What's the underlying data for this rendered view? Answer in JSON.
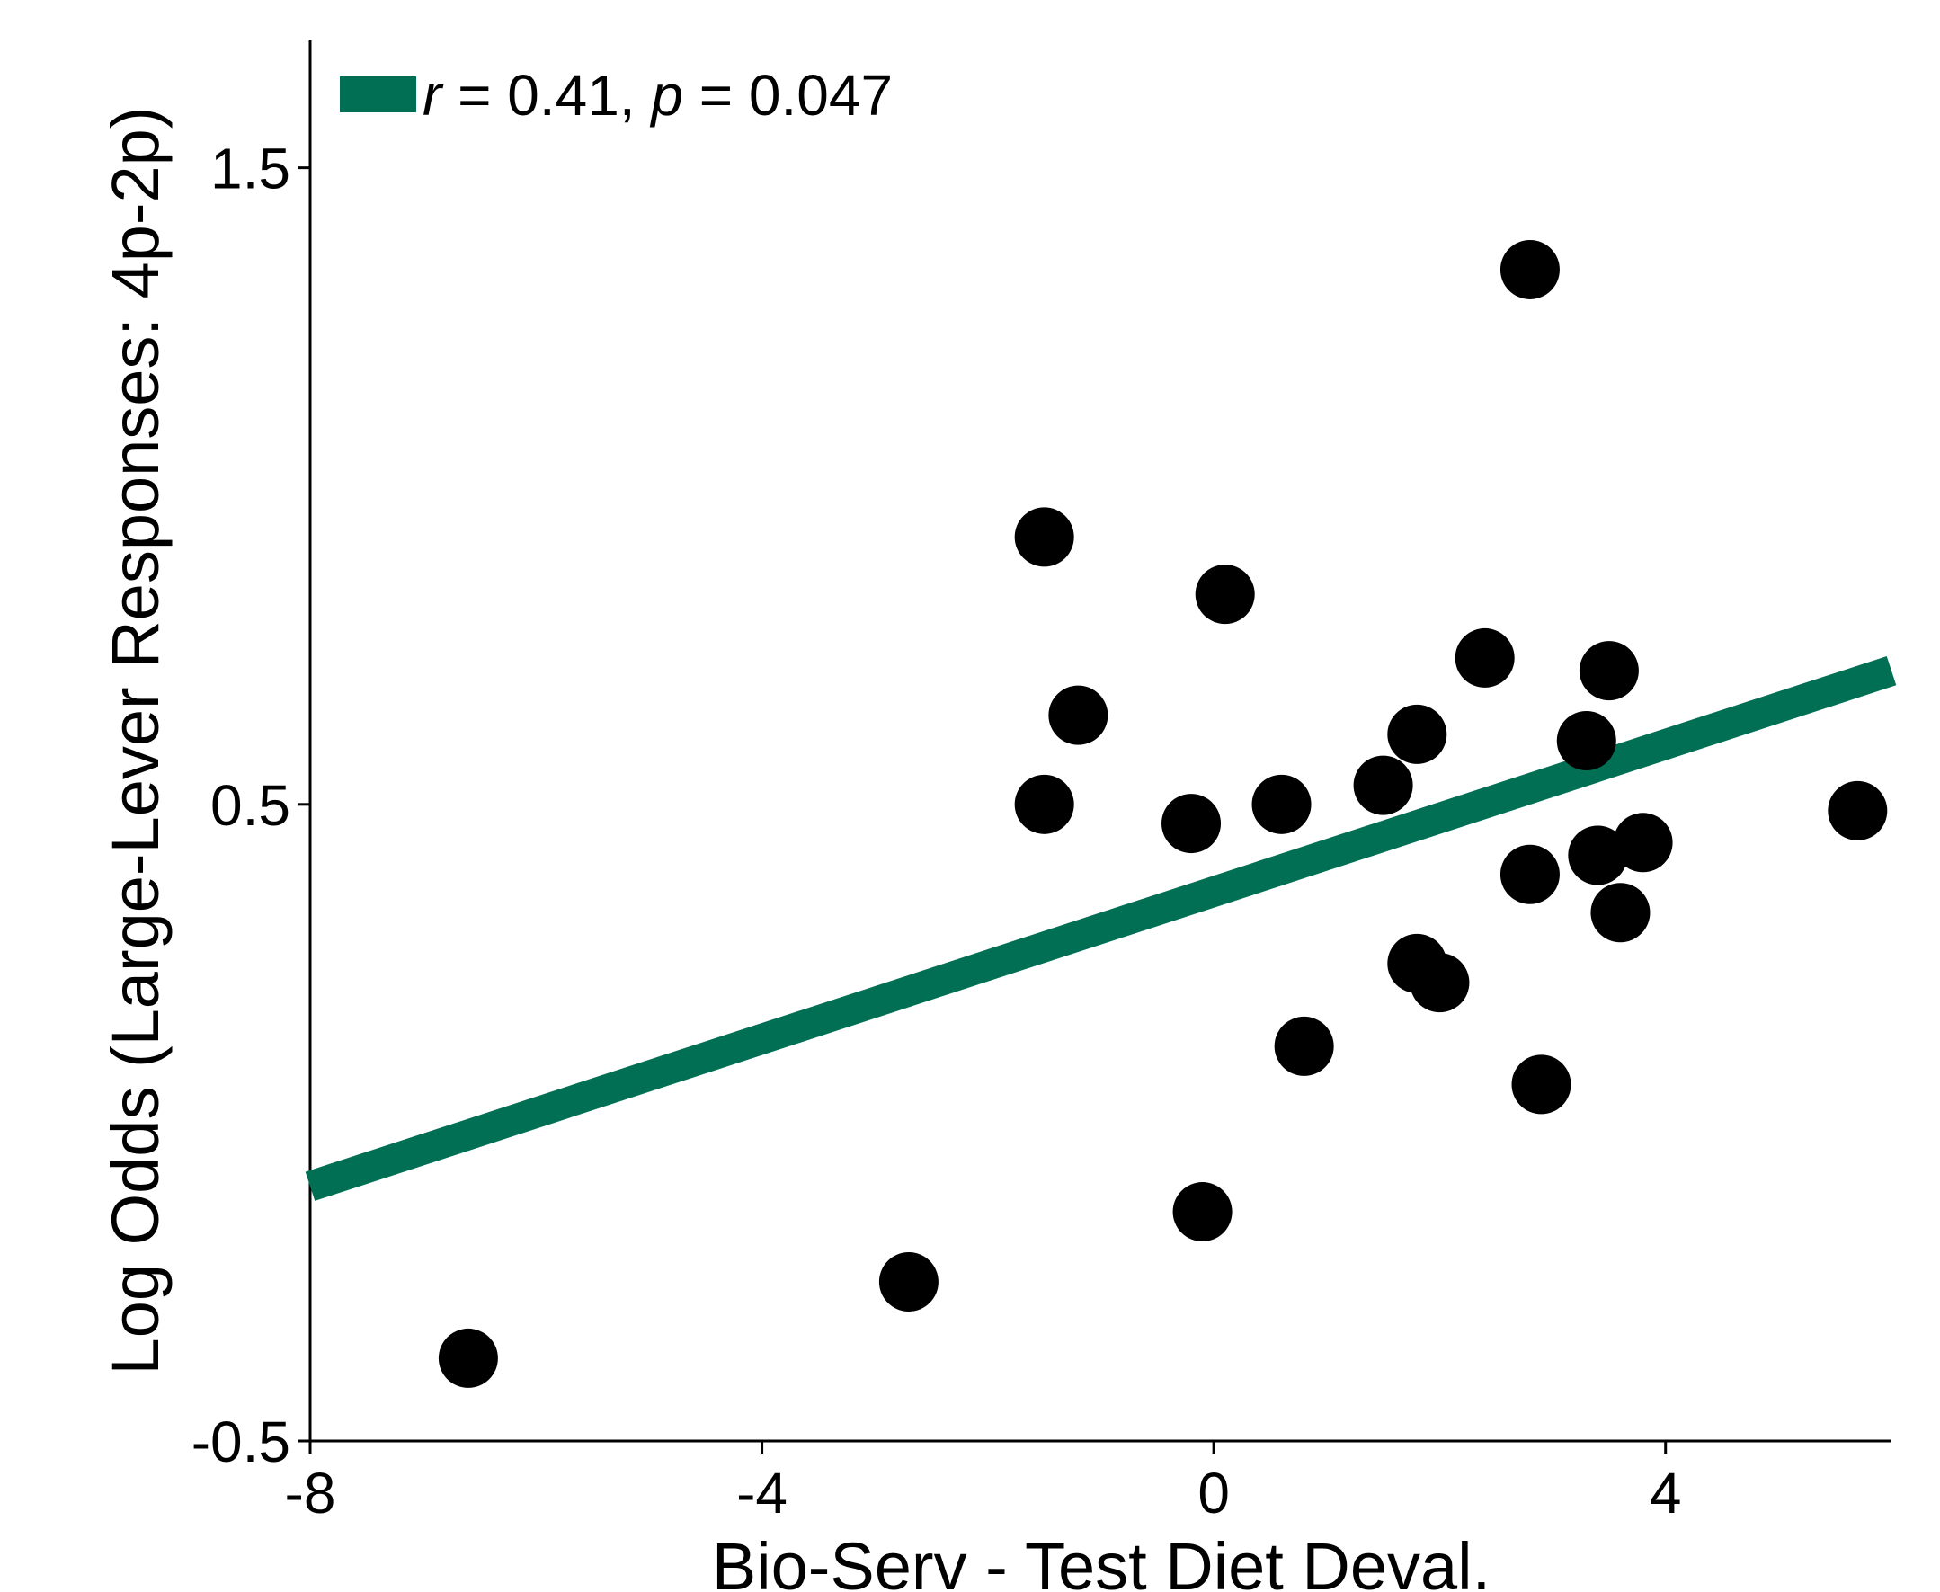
{
  "chart_data": {
    "type": "scatter",
    "xlabel": "Bio-Serv - Test Diet Deval.",
    "ylabel": "Log Odds (Large-Lever Responses: 4p-2p)",
    "xlim": [
      -8,
      6
    ],
    "ylim": [
      -0.5,
      1.7
    ],
    "xticks": [
      -8,
      -4,
      0,
      4
    ],
    "yticks": [
      -0.5,
      0.5,
      1.5
    ],
    "xtick_labels": [
      "-8",
      "-4",
      "0",
      "4"
    ],
    "ytick_labels": [
      "-0.5",
      "0.5",
      "1.5"
    ],
    "grid": false,
    "legend": {
      "placement": "top-left",
      "r_symbol": "r",
      "r_text": " = 0.41, ",
      "p_symbol": "p",
      "p_text": " = 0.047"
    },
    "colors": {
      "points": "#000000",
      "fit_line": "#006f54"
    },
    "points": [
      {
        "x": -6.6,
        "y": -0.37
      },
      {
        "x": -2.7,
        "y": -0.25
      },
      {
        "x": -1.5,
        "y": 0.92
      },
      {
        "x": -1.2,
        "y": 0.64
      },
      {
        "x": -1.5,
        "y": 0.5
      },
      {
        "x": -0.2,
        "y": 0.47
      },
      {
        "x": 0.1,
        "y": 0.83
      },
      {
        "x": -0.1,
        "y": -0.14
      },
      {
        "x": 0.6,
        "y": 0.5
      },
      {
        "x": 0.8,
        "y": 0.12
      },
      {
        "x": 1.5,
        "y": 0.53
      },
      {
        "x": 1.8,
        "y": 0.61
      },
      {
        "x": 1.8,
        "y": 0.25
      },
      {
        "x": 2.0,
        "y": 0.22
      },
      {
        "x": 2.4,
        "y": 0.73
      },
      {
        "x": 2.8,
        "y": 1.34
      },
      {
        "x": 2.8,
        "y": 0.39
      },
      {
        "x": 2.9,
        "y": 0.06
      },
      {
        "x": 3.3,
        "y": 0.6
      },
      {
        "x": 3.4,
        "y": 0.42
      },
      {
        "x": 3.5,
        "y": 0.71
      },
      {
        "x": 3.6,
        "y": 0.33
      },
      {
        "x": 3.8,
        "y": 0.44
      },
      {
        "x": 5.7,
        "y": 0.49
      }
    ],
    "fit_line": {
      "x": [
        -8,
        6
      ],
      "y": [
        -0.1,
        0.71
      ]
    }
  }
}
